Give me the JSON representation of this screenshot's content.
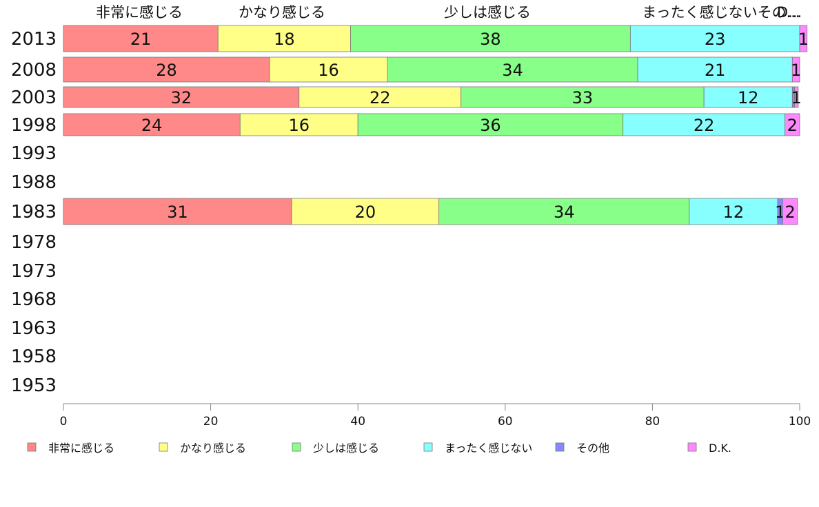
{
  "chart_data": {
    "type": "bar",
    "orientation": "horizontal",
    "stacked": true,
    "categories": [
      "2013",
      "2008",
      "2003",
      "1998",
      "1993",
      "1988",
      "1983",
      "1978",
      "1973",
      "1968",
      "1963",
      "1958",
      "1953"
    ],
    "series": [
      {
        "name": "非常に感じる",
        "color": "#ff8888",
        "values": [
          21,
          28,
          32,
          24,
          null,
          null,
          31,
          null,
          null,
          null,
          null,
          null,
          null
        ]
      },
      {
        "name": "かなり感じる",
        "color": "#ffff88",
        "values": [
          18,
          16,
          22,
          16,
          null,
          null,
          20,
          null,
          null,
          null,
          null,
          null,
          null
        ]
      },
      {
        "name": "少しは感じる",
        "color": "#88ff88",
        "values": [
          38,
          34,
          33,
          36,
          null,
          null,
          34,
          null,
          null,
          null,
          null,
          null,
          null
        ]
      },
      {
        "name": "まったく感じない",
        "color": "#88ffff",
        "values": [
          23,
          21,
          12,
          22,
          null,
          null,
          12,
          null,
          null,
          null,
          null,
          null,
          null
        ]
      },
      {
        "name": "その他",
        "color": "#8888ff",
        "values": [
          0,
          0,
          0.3,
          0,
          null,
          null,
          0.7,
          null,
          null,
          null,
          null,
          null,
          null
        ]
      },
      {
        "name": "D.K.",
        "color": "#ff88ff",
        "values": [
          1,
          1,
          0.5,
          2,
          null,
          null,
          2,
          null,
          null,
          null,
          null,
          null,
          null
        ]
      }
    ],
    "segment_labels": [
      [
        "21",
        "18",
        "38",
        "23",
        "",
        "1"
      ],
      [
        "28",
        "16",
        "34",
        "21",
        "",
        "1"
      ],
      [
        "32",
        "22",
        "33",
        "12",
        "",
        "1"
      ],
      [
        "24",
        "16",
        "36",
        "22",
        "",
        "2"
      ],
      [],
      [],
      [
        "31",
        "20",
        "34",
        "12",
        "1",
        "2"
      ],
      [],
      [],
      [],
      [],
      [],
      []
    ],
    "top_labels": [
      "非常に感じる",
      "かなり感じる",
      "少しは感じる",
      "まったく感じないその...",
      "D..."
    ],
    "xlim": [
      0,
      100
    ],
    "xticks": [
      "0",
      "20",
      "40",
      "60",
      "80",
      "100"
    ],
    "legend_position": "bottom",
    "grid": false
  }
}
